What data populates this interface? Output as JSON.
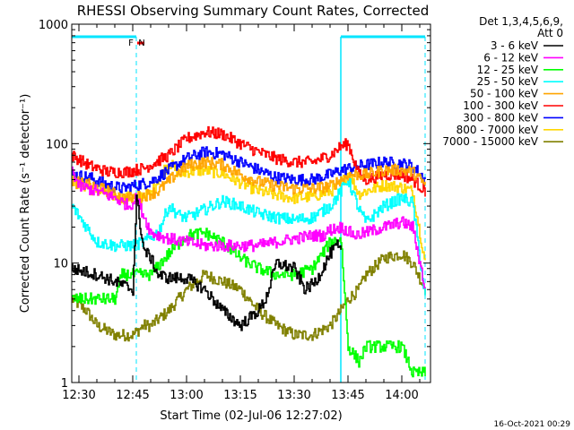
{
  "chart_data": {
    "type": "line",
    "title": "RHESSI Observing Summary Count Rates, Corrected",
    "xlabel": "Start Time (02-Jul-06 12:27:02)",
    "ylabel": "Corrected Count Rate (s⁻¹ detector⁻¹)",
    "y_scale": "log",
    "ylim": [
      1,
      1000
    ],
    "y_ticks": [
      1,
      10,
      100,
      1000
    ],
    "y_tick_labels": [
      "1",
      "10",
      "100",
      "1000"
    ],
    "xlim_minutes": [
      -2,
      98
    ],
    "x_ticks_minutes": [
      0,
      15,
      30,
      45,
      60,
      75,
      90
    ],
    "x_tick_labels": [
      "12:30",
      "12:45",
      "13:00",
      "13:15",
      "13:30",
      "13:45",
      "14:00"
    ],
    "x_unit": "minutes after 12:30 UT",
    "legend": {
      "header_line1": "Det 1,3,4,5,6,9,",
      "header_line2": "Att 0",
      "placement": "right"
    },
    "timestamp": "16-Oct-2021 00:29",
    "flags": [
      {
        "label": "F",
        "color": "#ff0000",
        "start": 16,
        "end": 18
      },
      {
        "label": "N",
        "color": "#00e5ff",
        "start": 16,
        "end": 16
      }
    ],
    "flag_bar": {
      "color": "#00e5ff",
      "segments": [
        [
          -2,
          16
        ],
        [
          73,
          96.5
        ]
      ]
    },
    "night_markers": [
      16,
      96.5
    ],
    "day_markers": [
      73
    ],
    "series": [
      {
        "name": "3 - 6 keV",
        "color": "#000000",
        "data": [
          [
            -2,
            9
          ],
          [
            5,
            8
          ],
          [
            10,
            7
          ],
          [
            15,
            6
          ],
          [
            16,
            35
          ],
          [
            18,
            13
          ],
          [
            20,
            11
          ],
          [
            22,
            8
          ],
          [
            25,
            7.5
          ],
          [
            30,
            7.5
          ],
          [
            35,
            6
          ],
          [
            40,
            4
          ],
          [
            45,
            3
          ],
          [
            50,
            4
          ],
          [
            52,
            5
          ],
          [
            55,
            10
          ],
          [
            60,
            9
          ],
          [
            63,
            6
          ],
          [
            66,
            7
          ],
          [
            70,
            12
          ],
          [
            72,
            14
          ],
          [
            73,
            12
          ]
        ]
      },
      {
        "name": "6 - 12 keV",
        "color": "#ff00ff",
        "data": [
          [
            -2,
            60
          ],
          [
            0,
            44
          ],
          [
            5,
            40
          ],
          [
            10,
            35
          ],
          [
            14,
            30
          ],
          [
            16,
            35
          ],
          [
            20,
            18
          ],
          [
            25,
            16
          ],
          [
            30,
            15
          ],
          [
            35,
            14
          ],
          [
            40,
            14
          ],
          [
            45,
            14
          ],
          [
            50,
            14
          ],
          [
            55,
            15
          ],
          [
            60,
            16
          ],
          [
            65,
            17
          ],
          [
            68,
            17
          ],
          [
            70,
            19
          ],
          [
            73,
            20
          ],
          [
            77,
            17
          ],
          [
            80,
            18
          ],
          [
            85,
            20
          ],
          [
            90,
            22
          ],
          [
            93,
            20
          ],
          [
            96.5,
            6
          ]
        ]
      },
      {
        "name": "12 - 25 keV",
        "color": "#00ff00",
        "data": [
          [
            -2,
            5
          ],
          [
            8,
            5
          ],
          [
            10,
            5
          ],
          [
            12,
            8
          ],
          [
            15,
            8
          ],
          [
            20,
            8
          ],
          [
            25,
            12
          ],
          [
            30,
            17
          ],
          [
            35,
            18
          ],
          [
            40,
            15
          ],
          [
            45,
            11
          ],
          [
            50,
            9
          ],
          [
            55,
            8
          ],
          [
            60,
            8
          ],
          [
            65,
            9
          ],
          [
            70,
            15
          ],
          [
            73,
            16
          ],
          [
            75,
            2
          ],
          [
            78,
            1.5
          ],
          [
            80,
            2
          ],
          [
            90,
            2
          ],
          [
            93,
            1.2
          ],
          [
            96.5,
            1.2
          ]
        ]
      },
      {
        "name": "25 - 50 keV",
        "color": "#00ffff",
        "data": [
          [
            -2,
            30
          ],
          [
            5,
            15
          ],
          [
            10,
            14
          ],
          [
            15,
            14
          ],
          [
            18,
            15
          ],
          [
            22,
            18
          ],
          [
            25,
            30
          ],
          [
            28,
            25
          ],
          [
            30,
            24
          ],
          [
            35,
            28
          ],
          [
            40,
            33
          ],
          [
            45,
            30
          ],
          [
            50,
            26
          ],
          [
            55,
            24
          ],
          [
            60,
            23
          ],
          [
            65,
            24
          ],
          [
            70,
            30
          ],
          [
            73,
            40
          ],
          [
            75,
            50
          ],
          [
            78,
            28
          ],
          [
            80,
            22
          ],
          [
            85,
            30
          ],
          [
            90,
            35
          ],
          [
            93,
            32
          ],
          [
            96.5,
            5
          ]
        ]
      },
      {
        "name": "50 - 100 keV",
        "color": "#ffa500",
        "data": [
          [
            -2,
            48
          ],
          [
            3,
            45
          ],
          [
            8,
            40
          ],
          [
            12,
            35
          ],
          [
            16,
            35
          ],
          [
            22,
            40
          ],
          [
            27,
            55
          ],
          [
            30,
            65
          ],
          [
            35,
            70
          ],
          [
            40,
            67
          ],
          [
            45,
            55
          ],
          [
            50,
            48
          ],
          [
            55,
            44
          ],
          [
            60,
            42
          ],
          [
            65,
            42
          ],
          [
            70,
            44
          ],
          [
            73,
            50
          ],
          [
            76,
            55
          ],
          [
            80,
            55
          ],
          [
            85,
            60
          ],
          [
            90,
            60
          ],
          [
            93,
            58
          ],
          [
            96.5,
            45
          ]
        ]
      },
      {
        "name": "100 - 300 keV",
        "color": "#ff0000",
        "data": [
          [
            -2,
            80
          ],
          [
            3,
            65
          ],
          [
            8,
            58
          ],
          [
            13,
            58
          ],
          [
            18,
            62
          ],
          [
            25,
            80
          ],
          [
            30,
            110
          ],
          [
            35,
            125
          ],
          [
            40,
            120
          ],
          [
            45,
            100
          ],
          [
            50,
            85
          ],
          [
            55,
            75
          ],
          [
            60,
            70
          ],
          [
            65,
            70
          ],
          [
            70,
            80
          ],
          [
            73,
            95
          ],
          [
            75,
            100
          ],
          [
            78,
            55
          ],
          [
            80,
            50
          ],
          [
            85,
            55
          ],
          [
            90,
            55
          ],
          [
            93,
            50
          ],
          [
            96.5,
            40
          ]
        ]
      },
      {
        "name": "300 - 800 keV",
        "color": "#0000ff",
        "data": [
          [
            -2,
            55
          ],
          [
            3,
            52
          ],
          [
            8,
            45
          ],
          [
            12,
            42
          ],
          [
            16,
            45
          ],
          [
            20,
            48
          ],
          [
            25,
            60
          ],
          [
            30,
            75
          ],
          [
            35,
            85
          ],
          [
            40,
            82
          ],
          [
            45,
            70
          ],
          [
            50,
            60
          ],
          [
            55,
            52
          ],
          [
            60,
            50
          ],
          [
            65,
            50
          ],
          [
            70,
            55
          ],
          [
            73,
            60
          ],
          [
            78,
            65
          ],
          [
            85,
            70
          ],
          [
            90,
            68
          ],
          [
            93,
            65
          ],
          [
            96.5,
            50
          ]
        ]
      },
      {
        "name": "800 - 7000 keV",
        "color": "#ffd700",
        "data": [
          [
            -2,
            50
          ],
          [
            3,
            42
          ],
          [
            8,
            38
          ],
          [
            12,
            35
          ],
          [
            16,
            36
          ],
          [
            20,
            38
          ],
          [
            22,
            50
          ],
          [
            25,
            70
          ],
          [
            28,
            55
          ],
          [
            30,
            58
          ],
          [
            35,
            60
          ],
          [
            40,
            56
          ],
          [
            45,
            47
          ],
          [
            50,
            40
          ],
          [
            55,
            37
          ],
          [
            60,
            35
          ],
          [
            65,
            36
          ],
          [
            70,
            40
          ],
          [
            73,
            45
          ],
          [
            75,
            58
          ],
          [
            78,
            38
          ],
          [
            80,
            40
          ],
          [
            85,
            45
          ],
          [
            90,
            43
          ],
          [
            93,
            40
          ],
          [
            96.5,
            10
          ]
        ]
      },
      {
        "name": "7000 - 15000 keV",
        "color": "#808000",
        "data": [
          [
            -2,
            5
          ],
          [
            2,
            4
          ],
          [
            5,
            3
          ],
          [
            10,
            2.5
          ],
          [
            15,
            2.5
          ],
          [
            18,
            3
          ],
          [
            20,
            3
          ],
          [
            25,
            4
          ],
          [
            30,
            6
          ],
          [
            35,
            8
          ],
          [
            40,
            7
          ],
          [
            45,
            6
          ],
          [
            50,
            4
          ],
          [
            55,
            3
          ],
          [
            60,
            2.5
          ],
          [
            65,
            2.5
          ],
          [
            70,
            3
          ],
          [
            73,
            4
          ],
          [
            75,
            5
          ],
          [
            78,
            6
          ],
          [
            80,
            8
          ],
          [
            85,
            11
          ],
          [
            90,
            12
          ],
          [
            93,
            10
          ],
          [
            96.5,
            6
          ]
        ]
      }
    ]
  }
}
